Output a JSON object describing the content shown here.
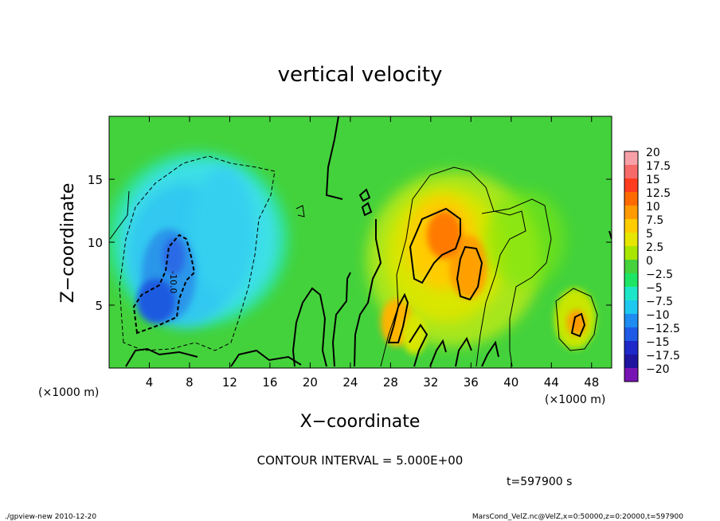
{
  "chart_data": {
    "type": "heatmap",
    "title": "vertical velocity",
    "xlabel": "X−coordinate",
    "ylabel": "Z−coordinate",
    "x_unit": "(×1000 m)",
    "y_unit": "(×1000 m)",
    "x_ticks": [
      4,
      8,
      12,
      16,
      20,
      24,
      28,
      32,
      36,
      40,
      44,
      48
    ],
    "y_ticks": [
      5,
      10,
      15
    ],
    "xlim": [
      0,
      50
    ],
    "ylim": [
      0,
      20
    ],
    "contour_interval_text": "CONTOUR INTERVAL = 5.000E+00",
    "colorbar": {
      "labels": [
        "20",
        "17.5",
        "15",
        "12.5",
        "10",
        "7.5",
        "5",
        "2.5",
        "0",
        "−2.5",
        "−5",
        "−7.5",
        "−10",
        "−12.5",
        "−15",
        "−17.5",
        "−20"
      ],
      "colors": [
        "#f7a0a8",
        "#f76a6a",
        "#ff3c1e",
        "#ff6a00",
        "#ff9a00",
        "#ffcc00",
        "#e6e600",
        "#a8e600",
        "#46d23c",
        "#1ee664",
        "#1ee6c8",
        "#1ec8f0",
        "#1e8cf0",
        "#1e5ae6",
        "#1e28c8",
        "#1e14a0",
        "#7814b4"
      ]
    },
    "features": [
      {
        "kind": "downdraft",
        "x_center": 8,
        "z_center": 9,
        "min_value": -12.5
      },
      {
        "kind": "updraft",
        "x_center": 33,
        "z_center": 10,
        "max_value": 12.5
      },
      {
        "kind": "updraft",
        "x_center": 35,
        "z_center": 8,
        "max_value": 10
      },
      {
        "kind": "updraft",
        "x_center": 46,
        "z_center": 3.5,
        "max_value": 10
      }
    ],
    "contour_label": "-10.0"
  },
  "footer": {
    "time": "t=597900 s",
    "left_note": "./gpview-new  2010-12-20",
    "right_note": "MarsCond_VelZ.nc@VelZ,x=0:50000,z=0:20000,t=597900"
  }
}
